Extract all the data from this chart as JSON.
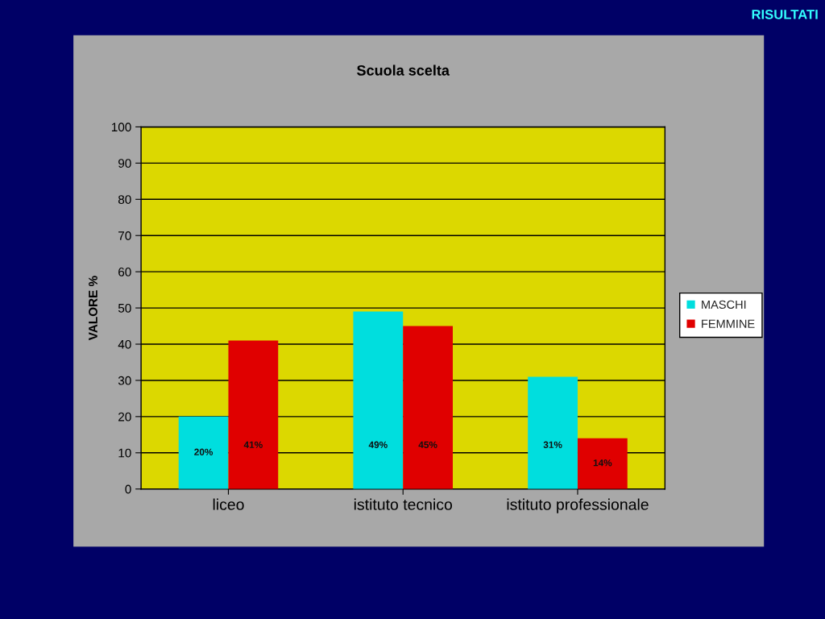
{
  "chart_data": {
    "type": "bar",
    "title": "Scuola scelta",
    "ylabel": "VALORE %",
    "categories": [
      "liceo",
      "istituto tecnico",
      "istituto professionale"
    ],
    "series": [
      {
        "name": "MASCHI",
        "color": "#00dede",
        "values": [
          20,
          49,
          31
        ],
        "value_labels": [
          "20%",
          "49%",
          "31%"
        ]
      },
      {
        "name": "FEMMINE",
        "color": "#e00000",
        "values": [
          41,
          45,
          14
        ],
        "value_labels": [
          "41%",
          "45%",
          "14%"
        ]
      }
    ],
    "ylim": [
      0,
      100
    ],
    "yticks": [
      0,
      10,
      20,
      30,
      40,
      50,
      60,
      70,
      80,
      90,
      100
    ],
    "grid": "y",
    "legend": "right",
    "annotations": [
      "RISULTATI"
    ]
  }
}
